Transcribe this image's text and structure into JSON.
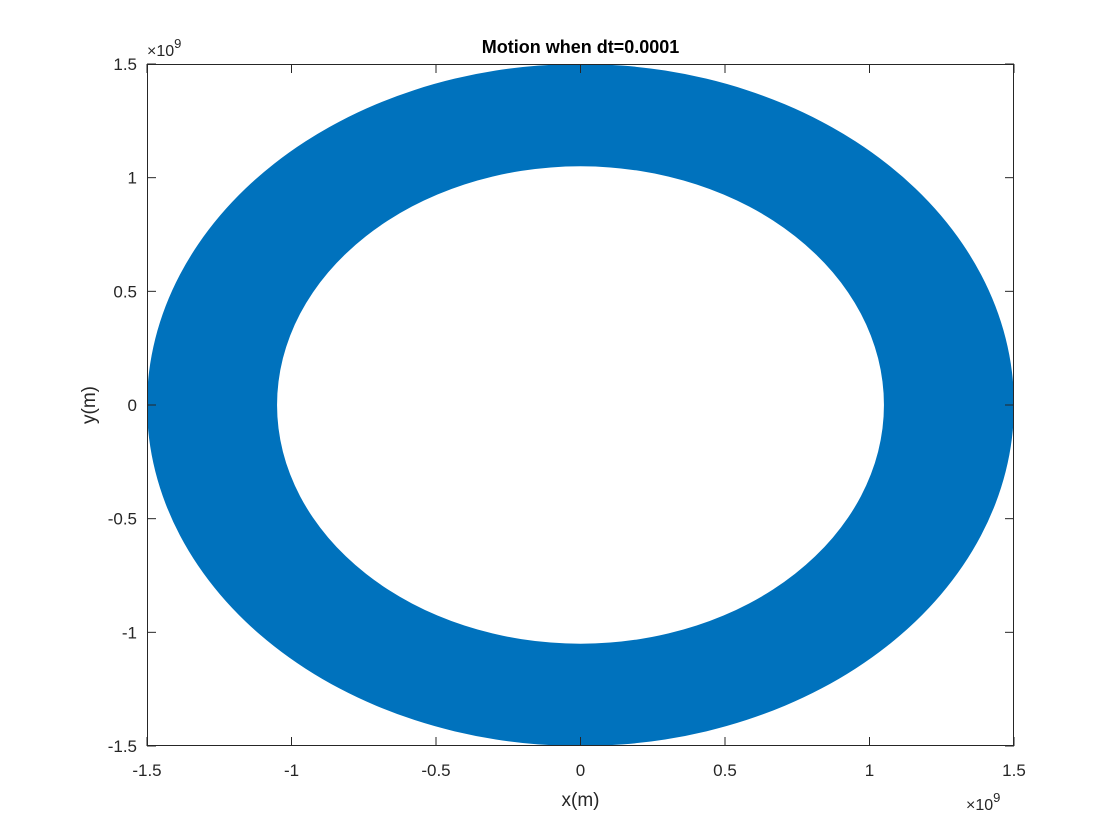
{
  "chart_data": {
    "type": "line",
    "title": "Motion when dt=0.0001",
    "xlabel": "x(m)",
    "ylabel": "y(m)",
    "xlim": [
      -1.5,
      1.5
    ],
    "ylim": [
      -1.5,
      1.5
    ],
    "x_ticks": [
      -1.5,
      -1,
      -0.5,
      0,
      0.5,
      1,
      1.5
    ],
    "y_ticks": [
      -1.5,
      -1,
      -0.5,
      0,
      0.5,
      1,
      1.5
    ],
    "x_tick_labels": [
      "-1.5",
      "-1",
      "-0.5",
      "0",
      "0.5",
      "1",
      "1.5"
    ],
    "y_tick_labels": [
      "-1.5",
      "-1",
      "-0.5",
      "0",
      "0.5",
      "1",
      "1.5"
    ],
    "x_exponent": {
      "base": "×10",
      "power": "9"
    },
    "y_exponent": {
      "base": "×10",
      "power": "9"
    },
    "grid": false,
    "box": true,
    "series": [
      {
        "color": "#0072BD",
        "shape": "annulus",
        "outer_rx": 1.5,
        "outer_ry": 1.5,
        "inner_rx": 1.05,
        "inner_ry": 1.05,
        "center": [
          0,
          0
        ]
      }
    ]
  }
}
